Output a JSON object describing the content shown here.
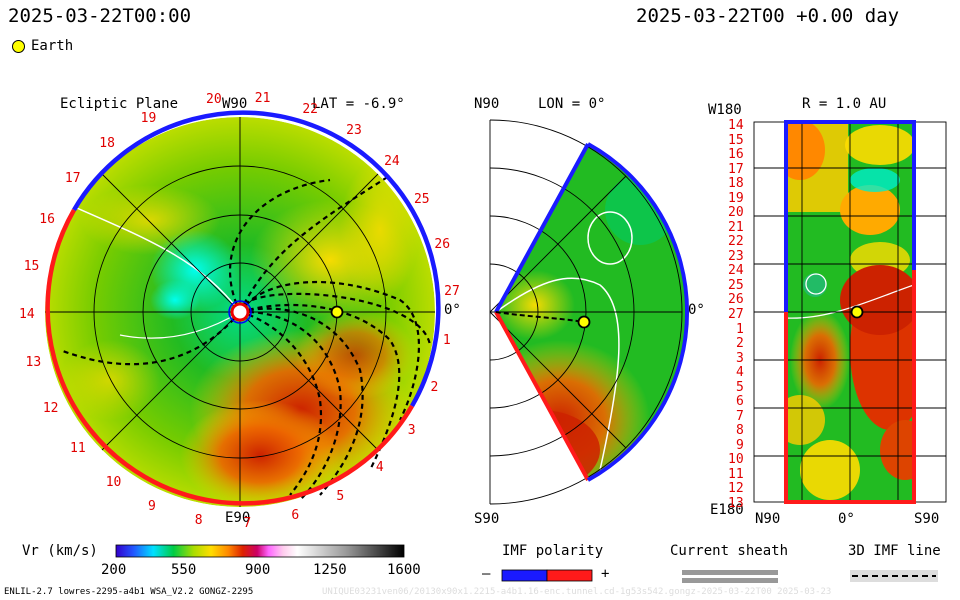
{
  "header": {
    "datetime_left": "2025-03-22T00:00",
    "datetime_right": "2025-03-22T00 +0.00 day",
    "legend_earth": "Earth"
  },
  "panels": {
    "ecliptic": {
      "title": "Ecliptic Plane",
      "lat_label": "LAT = -6.9°",
      "top_label": "W90",
      "bottom_label": "E90",
      "right_label": "0°",
      "sector_numbers": [
        "20",
        "21",
        "22",
        "23",
        "24",
        "25",
        "26",
        "27",
        "1",
        "2",
        "3",
        "4",
        "5",
        "6",
        "7",
        "8",
        "9",
        "10",
        "11",
        "12",
        "13",
        "14",
        "15",
        "16",
        "17",
        "18",
        "19"
      ]
    },
    "meridional": {
      "lon_label": "LON = 0°",
      "top_label": "N90",
      "bottom_label": "S90",
      "right_label": "0°"
    },
    "synoptic": {
      "r_label": "R = 1.0 AU",
      "top_left_label": "W180",
      "bottom_left_label": "E180",
      "x_labels": [
        "N90",
        "0°",
        "S90"
      ],
      "y_labels": [
        "14",
        "15",
        "16",
        "17",
        "18",
        "19",
        "20",
        "21",
        "22",
        "23",
        "24",
        "25",
        "26",
        "27",
        "1",
        "2",
        "3",
        "4",
        "5",
        "6",
        "7",
        "8",
        "9",
        "10",
        "11",
        "12",
        "13"
      ]
    }
  },
  "colorbar": {
    "label": "Vr (km/s)",
    "ticks": [
      "200",
      "550",
      "900",
      "1250",
      "1600"
    ],
    "range": [
      200,
      1600
    ]
  },
  "legends": {
    "imf_polarity": "IMF polarity",
    "minus": "–",
    "plus": "+",
    "current_sheath": "Current sheath",
    "imf_line": "3D IMF line"
  },
  "footer": {
    "left": "ENLIL-2.7 lowres-2295-a4b1 WSA_V2.2 GONGZ-2295",
    "right": "UNIQUE03231ven06/20130x90x1.2215-a4b1.16-enc.tunnel.cd-1g53s542.gongz-2025-03-22T00   2025-03-23"
  },
  "colors": {
    "blue_polarity": "#1a1aff",
    "red_polarity": "#ff1a1a",
    "earth": "#ffff00",
    "sector_text": "#e00000"
  }
}
